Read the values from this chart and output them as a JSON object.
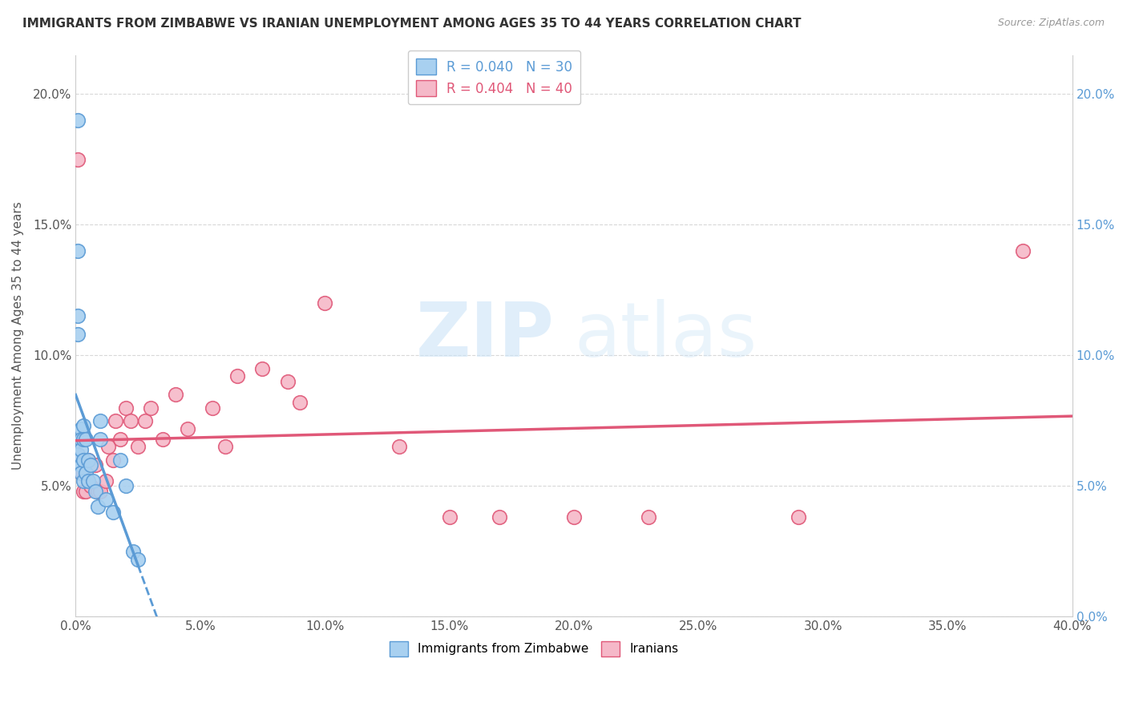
{
  "title": "IMMIGRANTS FROM ZIMBABWE VS IRANIAN UNEMPLOYMENT AMONG AGES 35 TO 44 YEARS CORRELATION CHART",
  "source": "Source: ZipAtlas.com",
  "ylabel": "Unemployment Among Ages 35 to 44 years",
  "xlim": [
    0.0,
    0.4
  ],
  "ylim": [
    0.0,
    0.215
  ],
  "xticks": [
    0.0,
    0.05,
    0.1,
    0.15,
    0.2,
    0.25,
    0.3,
    0.35,
    0.4
  ],
  "yticks": [
    0.0,
    0.05,
    0.1,
    0.15,
    0.2
  ],
  "watermark_zip": "ZIP",
  "watermark_atlas": "atlas",
  "legend_r1": "R = 0.040",
  "legend_n1": "N = 30",
  "legend_r2": "R = 0.404",
  "legend_n2": "N = 40",
  "color_zimbabwe_fill": "#a8d0f0",
  "color_zimbabwe_edge": "#5b9bd5",
  "color_iranians_fill": "#f5b8c8",
  "color_iranians_edge": "#e05878",
  "color_trendline_zimbabwe": "#5b9bd5",
  "color_trendline_iranians": "#e05878",
  "color_grid": "#d8d8d8",
  "background": "#ffffff",
  "zimbabwe_x": [
    0.001,
    0.001,
    0.001,
    0.001,
    0.001,
    0.002,
    0.002,
    0.002,
    0.002,
    0.002,
    0.003,
    0.003,
    0.003,
    0.003,
    0.004,
    0.004,
    0.005,
    0.005,
    0.006,
    0.007,
    0.008,
    0.009,
    0.01,
    0.01,
    0.012,
    0.015,
    0.018,
    0.02,
    0.023,
    0.025
  ],
  "zimbabwe_y": [
    0.19,
    0.14,
    0.115,
    0.108,
    0.062,
    0.072,
    0.068,
    0.064,
    0.058,
    0.055,
    0.073,
    0.068,
    0.06,
    0.052,
    0.068,
    0.055,
    0.06,
    0.052,
    0.058,
    0.052,
    0.048,
    0.042,
    0.075,
    0.068,
    0.045,
    0.04,
    0.06,
    0.05,
    0.025,
    0.022
  ],
  "iranians_x": [
    0.001,
    0.001,
    0.002,
    0.003,
    0.003,
    0.004,
    0.004,
    0.005,
    0.005,
    0.006,
    0.008,
    0.009,
    0.01,
    0.012,
    0.013,
    0.015,
    0.016,
    0.018,
    0.02,
    0.022,
    0.025,
    0.028,
    0.03,
    0.035,
    0.04,
    0.045,
    0.055,
    0.06,
    0.065,
    0.075,
    0.085,
    0.09,
    0.1,
    0.13,
    0.15,
    0.17,
    0.2,
    0.23,
    0.29,
    0.38
  ],
  "iranians_y": [
    0.175,
    0.062,
    0.055,
    0.055,
    0.048,
    0.055,
    0.048,
    0.06,
    0.052,
    0.05,
    0.058,
    0.048,
    0.048,
    0.052,
    0.065,
    0.06,
    0.075,
    0.068,
    0.08,
    0.075,
    0.065,
    0.075,
    0.08,
    0.068,
    0.085,
    0.072,
    0.08,
    0.065,
    0.092,
    0.095,
    0.09,
    0.082,
    0.12,
    0.065,
    0.038,
    0.038,
    0.038,
    0.038,
    0.038,
    0.14
  ]
}
